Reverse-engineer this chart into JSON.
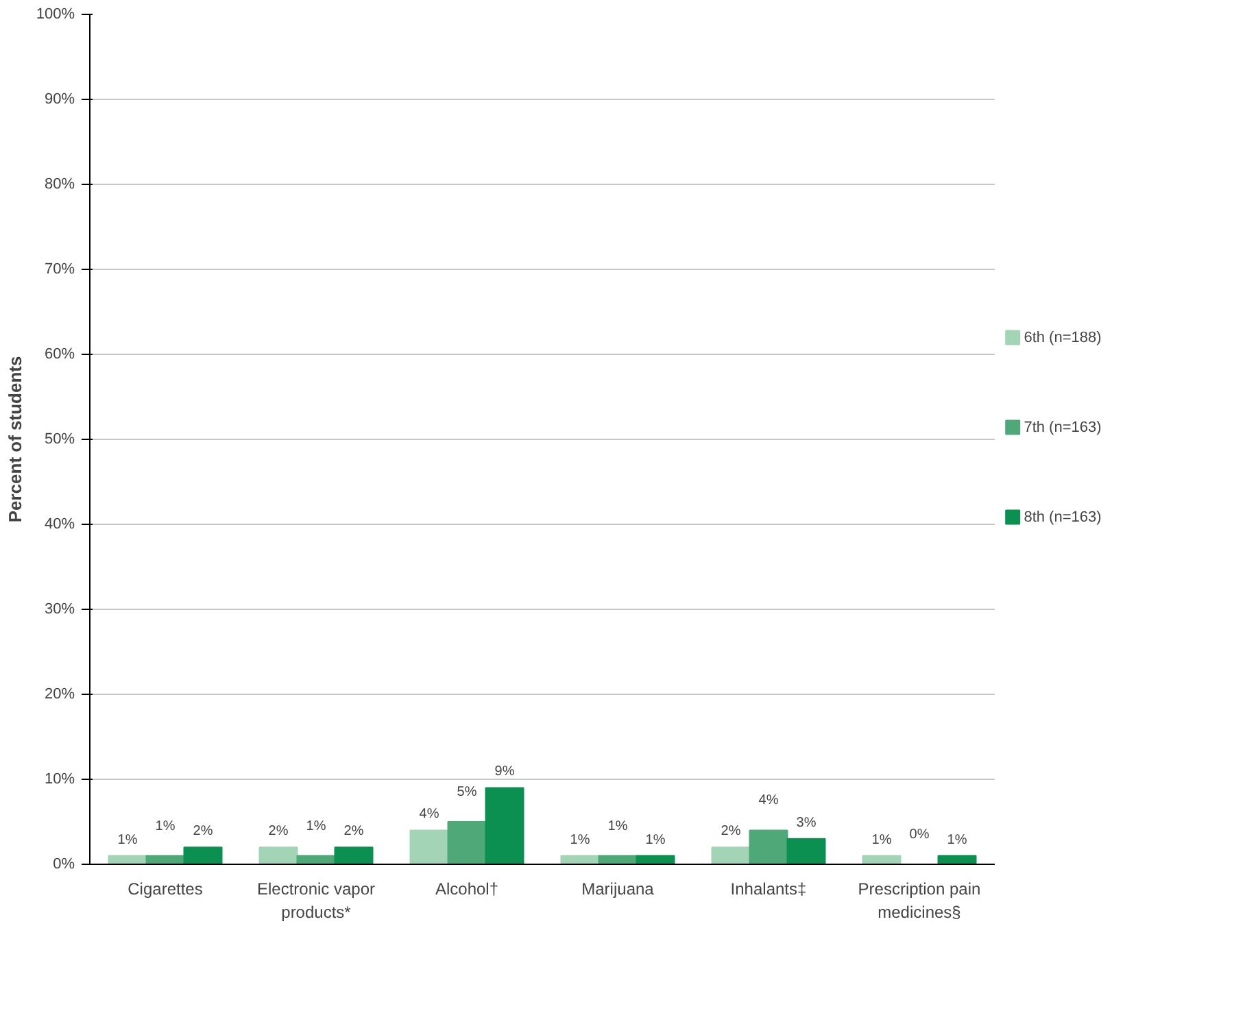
{
  "chart_data": {
    "type": "bar",
    "ylabel": "Percent of students",
    "categories": [
      "Cigarettes",
      "Electronic vapor products*",
      "Alcohol†",
      "Marijuana",
      "Inhalants‡",
      "Prescription pain medicines§"
    ],
    "series": [
      {
        "name": "6th (n=188)",
        "color": "#a3d4b5",
        "values": [
          1,
          2,
          4,
          1,
          2,
          1
        ],
        "value_labels": [
          "1%",
          "2%",
          "4%",
          "1%",
          "2%",
          "1%"
        ]
      },
      {
        "name": "7th (n=163)",
        "color": "#4fa878",
        "values": [
          1,
          1,
          5,
          1,
          4,
          0
        ],
        "value_labels": [
          "1%",
          "1%",
          "5%",
          "1%",
          "4%",
          "0%"
        ]
      },
      {
        "name": "8th (n=163)",
        "color": "#0b9052",
        "values": [
          2,
          2,
          9,
          1,
          3,
          1
        ],
        "value_labels": [
          "2%",
          "2%",
          "9%",
          "1%",
          "3%",
          "1%"
        ]
      }
    ],
    "ylim": [
      0,
      100
    ],
    "yticks": [
      {
        "value": 0,
        "label": "0%"
      },
      {
        "value": 10,
        "label": "10%"
      },
      {
        "value": 20,
        "label": "20%"
      },
      {
        "value": 30,
        "label": "30%"
      },
      {
        "value": 40,
        "label": "40%"
      },
      {
        "value": 50,
        "label": "50%"
      },
      {
        "value": 60,
        "label": "60%"
      },
      {
        "value": 70,
        "label": "70%"
      },
      {
        "value": 80,
        "label": "80%"
      },
      {
        "value": 90,
        "label": "90%"
      },
      {
        "value": 100,
        "label": "100%"
      }
    ],
    "grid": "y",
    "legend": "right"
  }
}
